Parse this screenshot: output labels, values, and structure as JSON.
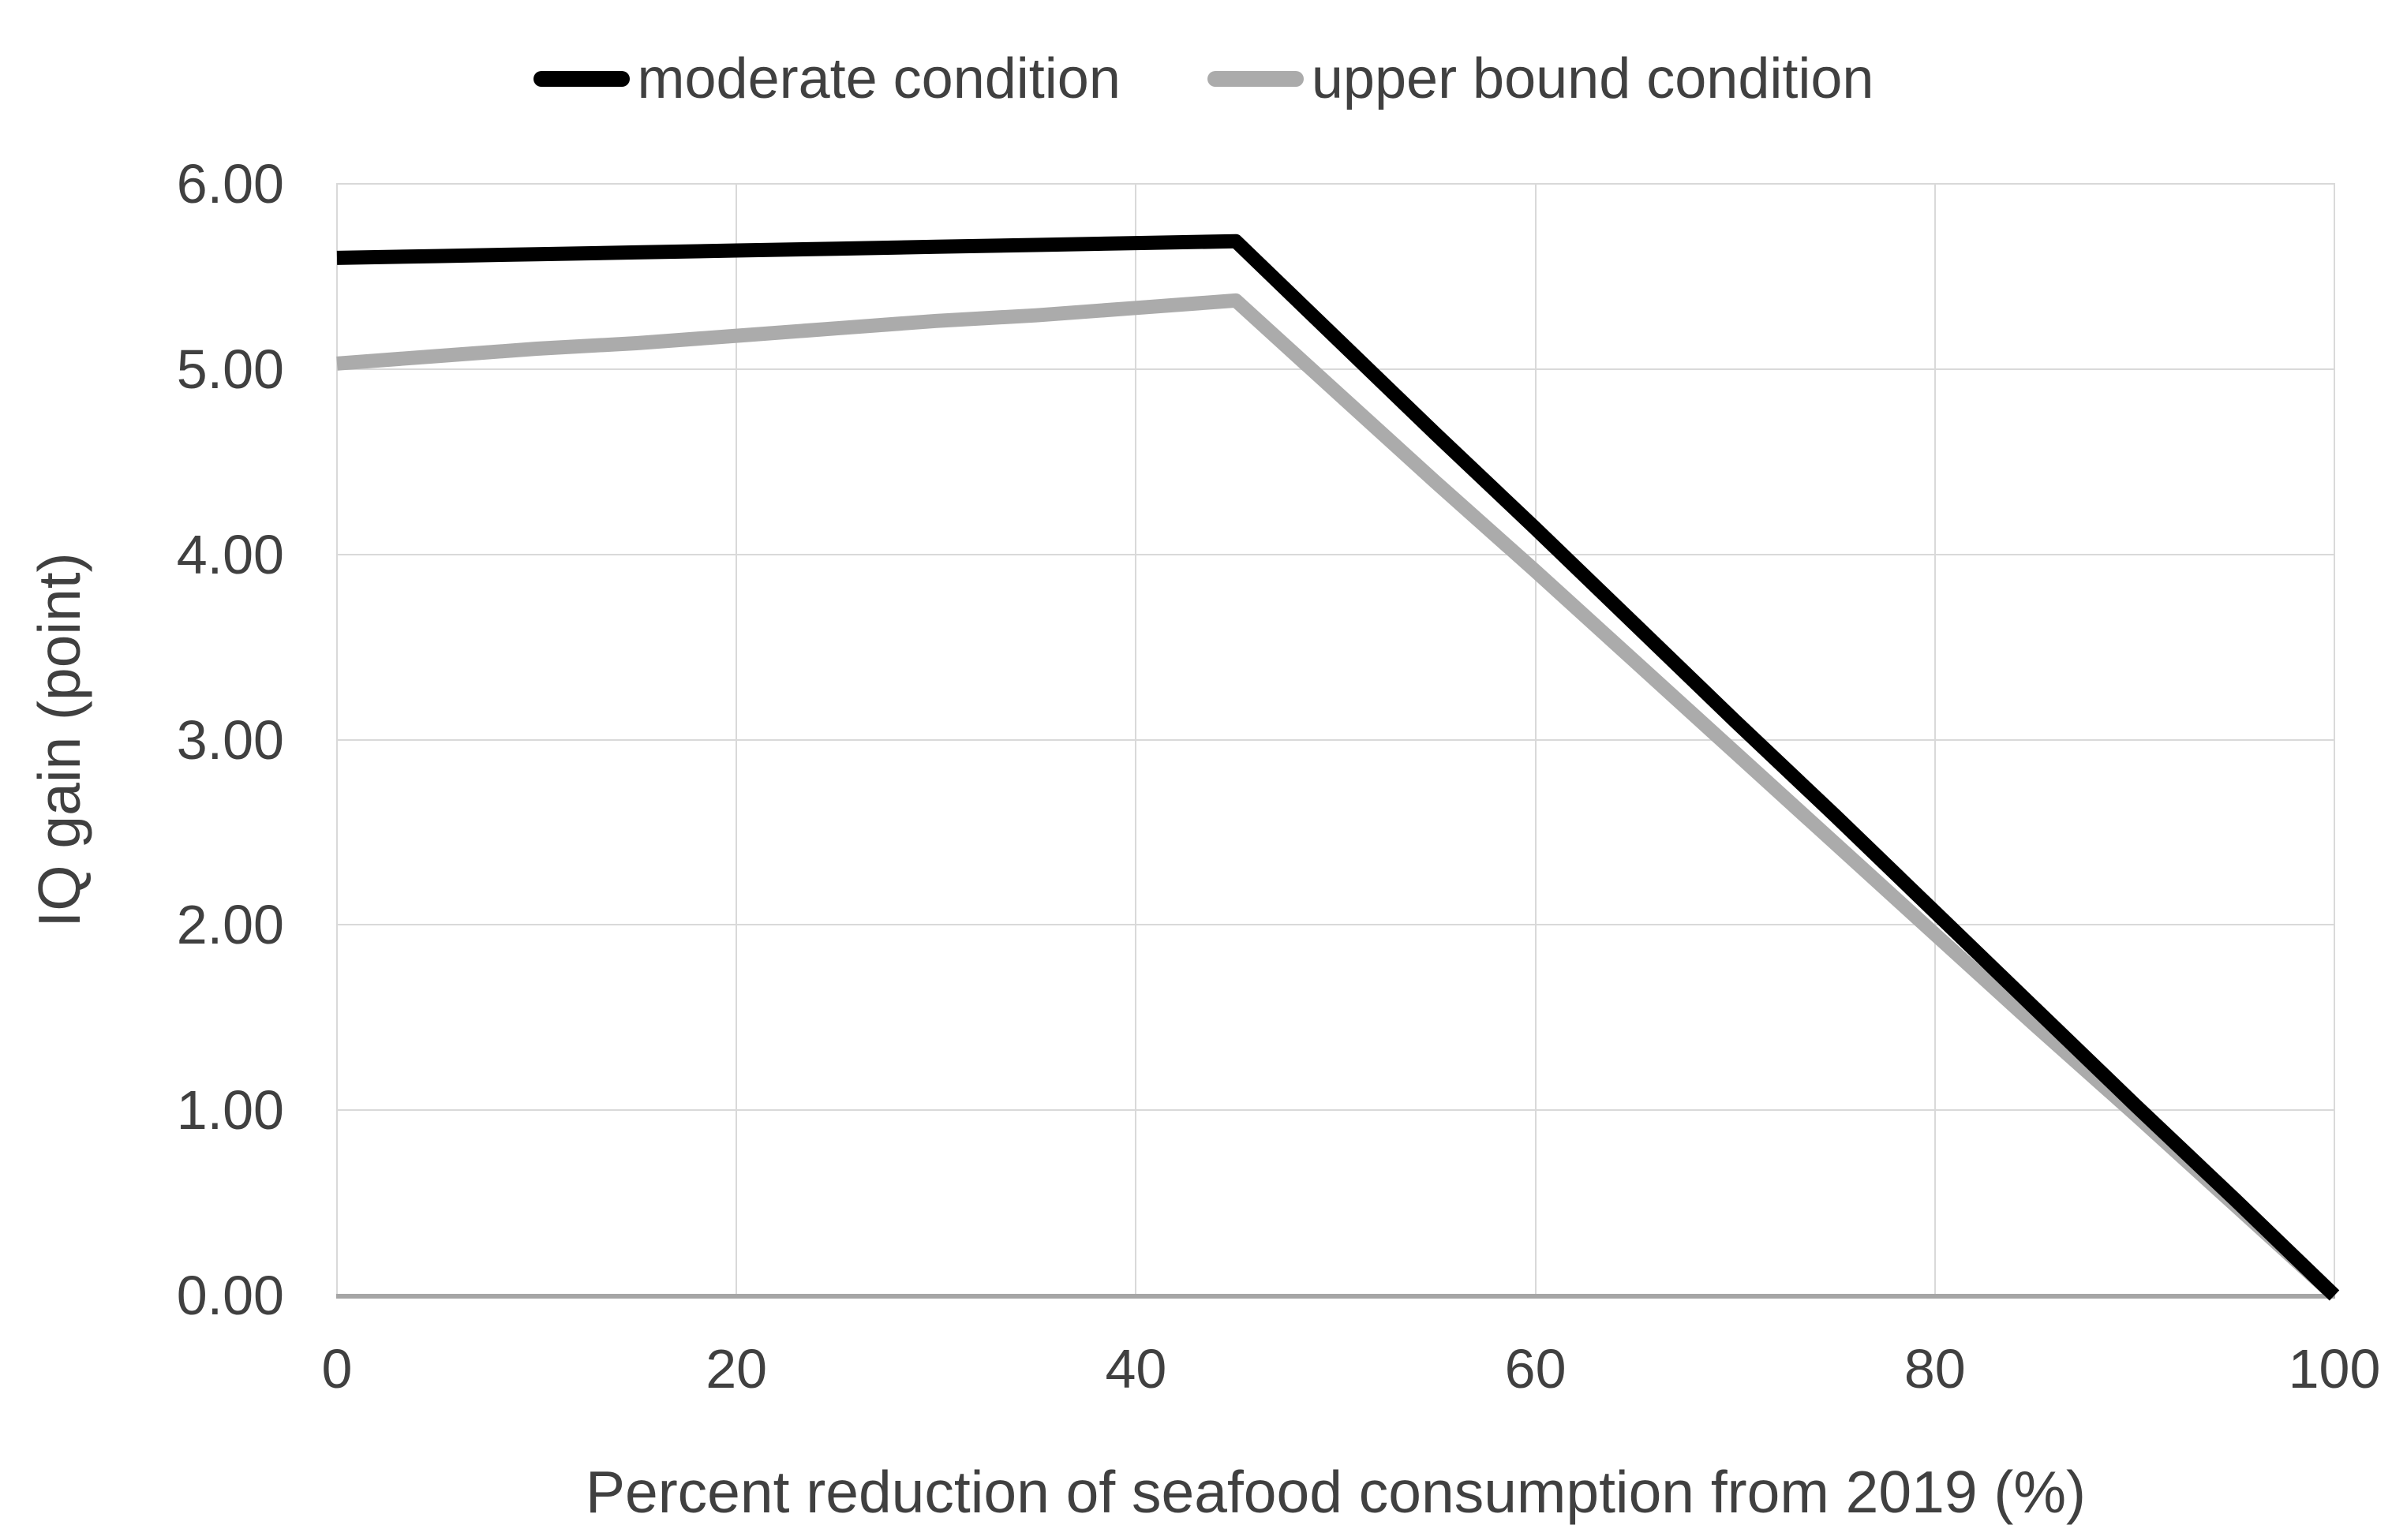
{
  "legend": {
    "items": [
      {
        "label": "moderate condition",
        "color": "#000000"
      },
      {
        "label": "upper bound condition",
        "color": "#ababab"
      }
    ]
  },
  "y_axis": {
    "title": "IQ gain (point)",
    "ticks": [
      "6.00",
      "5.00",
      "4.00",
      "3.00",
      "2.00",
      "1.00",
      "0.00"
    ]
  },
  "x_axis": {
    "title": "Percent reduction of seafood consumption from 2019 (%)",
    "ticks": [
      "0",
      "20",
      "40",
      "60",
      "80",
      "100"
    ]
  },
  "colors": {
    "text": "#404040",
    "gridline": "#d9d9d9",
    "axis_line": "#a6a6a6",
    "background": "#ffffff",
    "series_moderate": "#000000",
    "series_upper_bound": "#ababab"
  },
  "chart_data": {
    "type": "line",
    "title": "",
    "xlabel": "Percent reduction of seafood consumption from 2019 (%)",
    "ylabel": "IQ gain (point)",
    "xlim": [
      0,
      100
    ],
    "ylim": [
      0,
      6
    ],
    "x_tick_step": 20,
    "y_tick_step": 1,
    "grid": true,
    "legend_position": "top",
    "x": [
      0,
      5,
      10,
      15,
      20,
      25,
      30,
      35,
      40,
      45,
      50,
      55,
      60,
      65,
      70,
      75,
      80,
      85,
      90,
      95,
      100
    ],
    "series": [
      {
        "name": "moderate condition",
        "color": "#000000",
        "values": [
          5.6,
          5.61,
          5.62,
          5.63,
          5.64,
          5.65,
          5.66,
          5.67,
          5.68,
          5.69,
          5.17,
          4.65,
          4.14,
          3.62,
          3.1,
          2.59,
          2.07,
          1.55,
          1.03,
          0.52,
          0.0
        ]
      },
      {
        "name": "upper bound condition",
        "color": "#ababab",
        "values": [
          5.03,
          5.07,
          5.11,
          5.14,
          5.18,
          5.22,
          5.26,
          5.29,
          5.33,
          5.37,
          4.88,
          4.39,
          3.91,
          3.42,
          2.93,
          2.44,
          1.95,
          1.46,
          0.98,
          0.49,
          0.0
        ]
      }
    ]
  }
}
